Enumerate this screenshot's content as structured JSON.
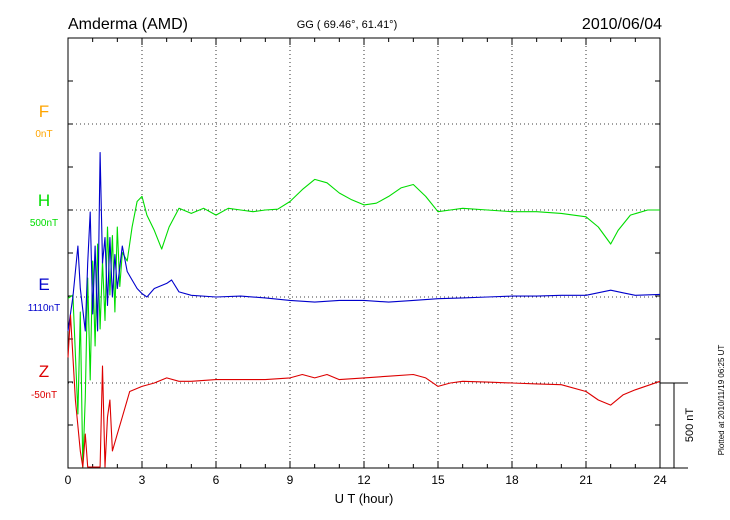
{
  "header": {
    "station": "Amderma (AMD)",
    "coords": "GG ( 69.46°,  61.41°)",
    "date": "2010/06/04"
  },
  "side_note": "Plotted at 2010/11/19 06:25 UT",
  "scale_label": "500 nT",
  "chart_data": {
    "type": "line",
    "title": "Amderma (AMD)",
    "xlabel": "U T (hour)",
    "ylabel": "",
    "xlim": [
      0,
      24
    ],
    "x_ticks": [
      0,
      3,
      6,
      9,
      12,
      15,
      18,
      21,
      24
    ],
    "x_tick_labels": [
      "0",
      "3",
      "6",
      "9",
      "12",
      "15",
      "18",
      "21",
      "24"
    ],
    "grid": true,
    "scale_bar_nT": 500,
    "series": [
      {
        "name": "F",
        "baseline_label": "0nT",
        "color": "#ffa500",
        "values": []
      },
      {
        "name": "H",
        "baseline_label": "500nT",
        "color": "#00dd00",
        "points": [
          [
            0,
            -520
          ],
          [
            0.2,
            -500
          ],
          [
            0.4,
            -1200
          ],
          [
            0.5,
            -600
          ],
          [
            0.6,
            -1700
          ],
          [
            0.7,
            -1100
          ],
          [
            0.8,
            -400
          ],
          [
            0.9,
            -1000
          ],
          [
            1.0,
            -300
          ],
          [
            1.1,
            -800
          ],
          [
            1.2,
            -200
          ],
          [
            1.3,
            -700
          ],
          [
            1.4,
            -300
          ],
          [
            1.5,
            -650
          ],
          [
            1.6,
            -100
          ],
          [
            1.7,
            -500
          ],
          [
            1.8,
            -150
          ],
          [
            1.9,
            -600
          ],
          [
            2.0,
            -100
          ],
          [
            2.1,
            -450
          ],
          [
            2.2,
            -250
          ],
          [
            2.4,
            -300
          ],
          [
            2.6,
            -100
          ],
          [
            2.8,
            50
          ],
          [
            3.0,
            80
          ],
          [
            3.2,
            -30
          ],
          [
            3.5,
            -120
          ],
          [
            3.8,
            -230
          ],
          [
            4.1,
            -100
          ],
          [
            4.5,
            10
          ],
          [
            5.0,
            -20
          ],
          [
            5.5,
            10
          ],
          [
            6.0,
            -30
          ],
          [
            6.5,
            10
          ],
          [
            7.0,
            0
          ],
          [
            7.5,
            -10
          ],
          [
            8.0,
            0
          ],
          [
            8.5,
            5
          ],
          [
            9.0,
            50
          ],
          [
            9.5,
            120
          ],
          [
            10.0,
            180
          ],
          [
            10.5,
            160
          ],
          [
            11.0,
            100
          ],
          [
            11.5,
            60
          ],
          [
            12.0,
            30
          ],
          [
            12.5,
            40
          ],
          [
            13.0,
            80
          ],
          [
            13.5,
            130
          ],
          [
            14.0,
            150
          ],
          [
            14.5,
            80
          ],
          [
            15.0,
            -10
          ],
          [
            15.5,
            0
          ],
          [
            16.0,
            10
          ],
          [
            17.0,
            0
          ],
          [
            18.0,
            -10
          ],
          [
            19.0,
            -10
          ],
          [
            20.0,
            -20
          ],
          [
            21.0,
            -40
          ],
          [
            21.5,
            -100
          ],
          [
            22.0,
            -200
          ],
          [
            22.3,
            -120
          ],
          [
            22.8,
            -30
          ],
          [
            23.5,
            0
          ],
          [
            24.0,
            0
          ]
        ]
      },
      {
        "name": "E",
        "baseline_label": "1110nT",
        "color": "#0000cc",
        "points": [
          [
            0,
            -200
          ],
          [
            0.2,
            0
          ],
          [
            0.4,
            300
          ],
          [
            0.5,
            50
          ],
          [
            0.7,
            -200
          ],
          [
            0.8,
            200
          ],
          [
            0.9,
            500
          ],
          [
            1.0,
            -100
          ],
          [
            1.1,
            300
          ],
          [
            1.2,
            -200
          ],
          [
            1.3,
            850
          ],
          [
            1.4,
            200
          ],
          [
            1.5,
            350
          ],
          [
            1.6,
            -50
          ],
          [
            1.7,
            350
          ],
          [
            1.8,
            0
          ],
          [
            1.9,
            250
          ],
          [
            2.0,
            50
          ],
          [
            2.2,
            300
          ],
          [
            2.4,
            150
          ],
          [
            2.6,
            100
          ],
          [
            2.8,
            50
          ],
          [
            3.0,
            20
          ],
          [
            3.2,
            0
          ],
          [
            3.5,
            50
          ],
          [
            4.0,
            80
          ],
          [
            4.2,
            100
          ],
          [
            4.5,
            30
          ],
          [
            5.0,
            10
          ],
          [
            6.0,
            0
          ],
          [
            7.0,
            5
          ],
          [
            8.0,
            -5
          ],
          [
            9.0,
            -20
          ],
          [
            10.0,
            -30
          ],
          [
            11.0,
            -20
          ],
          [
            12.0,
            -20
          ],
          [
            13.0,
            -30
          ],
          [
            14.0,
            -20
          ],
          [
            15.0,
            -10
          ],
          [
            16.0,
            -5
          ],
          [
            17.0,
            0
          ],
          [
            18.0,
            5
          ],
          [
            19.0,
            5
          ],
          [
            20.0,
            10
          ],
          [
            21.0,
            10
          ],
          [
            22.0,
            40
          ],
          [
            22.5,
            25
          ],
          [
            23.0,
            10
          ],
          [
            24.0,
            15
          ]
        ]
      },
      {
        "name": "Z",
        "baseline_label": "-50nT",
        "color": "#dd0000",
        "points": [
          [
            0,
            150
          ],
          [
            0.1,
            400
          ],
          [
            0.3,
            -100
          ],
          [
            0.5,
            -400
          ],
          [
            0.6,
            -700
          ],
          [
            0.7,
            -300
          ],
          [
            0.8,
            -500
          ],
          [
            0.9,
            -900
          ],
          [
            1.0,
            -1000
          ],
          [
            1.1,
            -800
          ],
          [
            1.2,
            -600
          ],
          [
            1.3,
            -900
          ],
          [
            1.4,
            100
          ],
          [
            1.5,
            -500
          ],
          [
            1.6,
            -200
          ],
          [
            1.7,
            -100
          ],
          [
            1.8,
            -400
          ],
          [
            2.0,
            -300
          ],
          [
            2.2,
            -200
          ],
          [
            2.5,
            -50
          ],
          [
            3.0,
            -20
          ],
          [
            3.5,
            0
          ],
          [
            4.0,
            30
          ],
          [
            4.5,
            10
          ],
          [
            5.0,
            10
          ],
          [
            6.0,
            20
          ],
          [
            7.0,
            20
          ],
          [
            8.0,
            20
          ],
          [
            9.0,
            30
          ],
          [
            9.5,
            50
          ],
          [
            10.0,
            30
          ],
          [
            10.5,
            50
          ],
          [
            11.0,
            20
          ],
          [
            12.0,
            30
          ],
          [
            13.0,
            40
          ],
          [
            14.0,
            50
          ],
          [
            14.5,
            30
          ],
          [
            15.0,
            -20
          ],
          [
            15.5,
            0
          ],
          [
            16.0,
            10
          ],
          [
            17.0,
            5
          ],
          [
            18.0,
            0
          ],
          [
            19.0,
            -5
          ],
          [
            20.0,
            -10
          ],
          [
            21.0,
            -50
          ],
          [
            21.5,
            -100
          ],
          [
            22.0,
            -130
          ],
          [
            22.5,
            -70
          ],
          [
            23.0,
            -40
          ],
          [
            24.0,
            10
          ]
        ]
      }
    ]
  }
}
